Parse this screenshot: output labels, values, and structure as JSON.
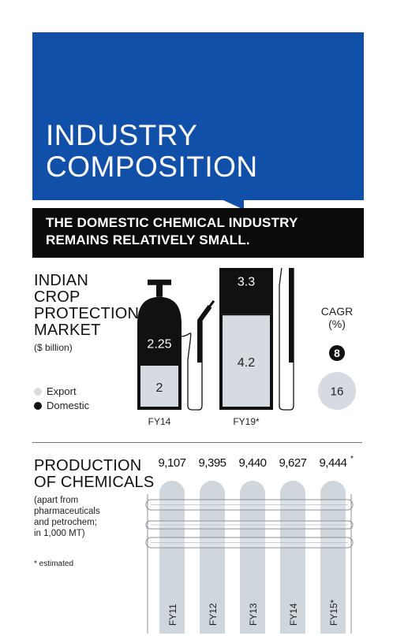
{
  "header": {
    "title_line1": "INDUSTRY",
    "title_line2": "COMPOSITION",
    "subtitle_line1": "THE DOMESTIC CHEMICAL INDUSTRY",
    "subtitle_line2": "REMAINS RELATIVELY SMALL."
  },
  "crop": {
    "title_lines": [
      "INDIAN",
      "CROP",
      "PROTECTION",
      "MARKET"
    ],
    "unit": "($ billion)",
    "legend": {
      "export": "Export",
      "domestic": "Domestic"
    },
    "cagr_label": "CAGR",
    "cagr_unit": "(%)"
  },
  "production": {
    "title_lines": [
      "PRODUCTION",
      "OF CHEMICALS"
    ],
    "note_lines": [
      "(apart from",
      "pharmaceuticals",
      "and petrochem;",
      "in 1,000 MT)"
    ],
    "estimated_note": "* estimated"
  },
  "colors": {
    "blue": "#1150a8",
    "black": "#0b0b0b",
    "export_gray": "#d5dbe0",
    "domestic_black": "#111111"
  },
  "chart_data": [
    {
      "type": "bar",
      "title": "INDIAN CROP PROTECTION MARKET",
      "ylabel": "($ billion)",
      "categories": [
        "FY14",
        "FY19*"
      ],
      "series": [
        {
          "name": "Export",
          "values": [
            2,
            4.2
          ]
        },
        {
          "name": "Domestic",
          "values": [
            2.25,
            3.3
          ]
        }
      ],
      "cagr": [
        {
          "name": "Domestic",
          "value": 8
        },
        {
          "name": "Export",
          "value": 16
        }
      ]
    },
    {
      "type": "bar",
      "title": "PRODUCTION OF CHEMICALS",
      "ylabel": "in 1,000 MT",
      "categories": [
        "FY11",
        "FY12",
        "FY13",
        "FY14",
        "FY15*"
      ],
      "values": [
        9107,
        9395,
        9440,
        9627,
        9444
      ],
      "value_labels": [
        "9,107",
        "9,395",
        "9,440",
        "9,627",
        "9,444*"
      ]
    }
  ]
}
